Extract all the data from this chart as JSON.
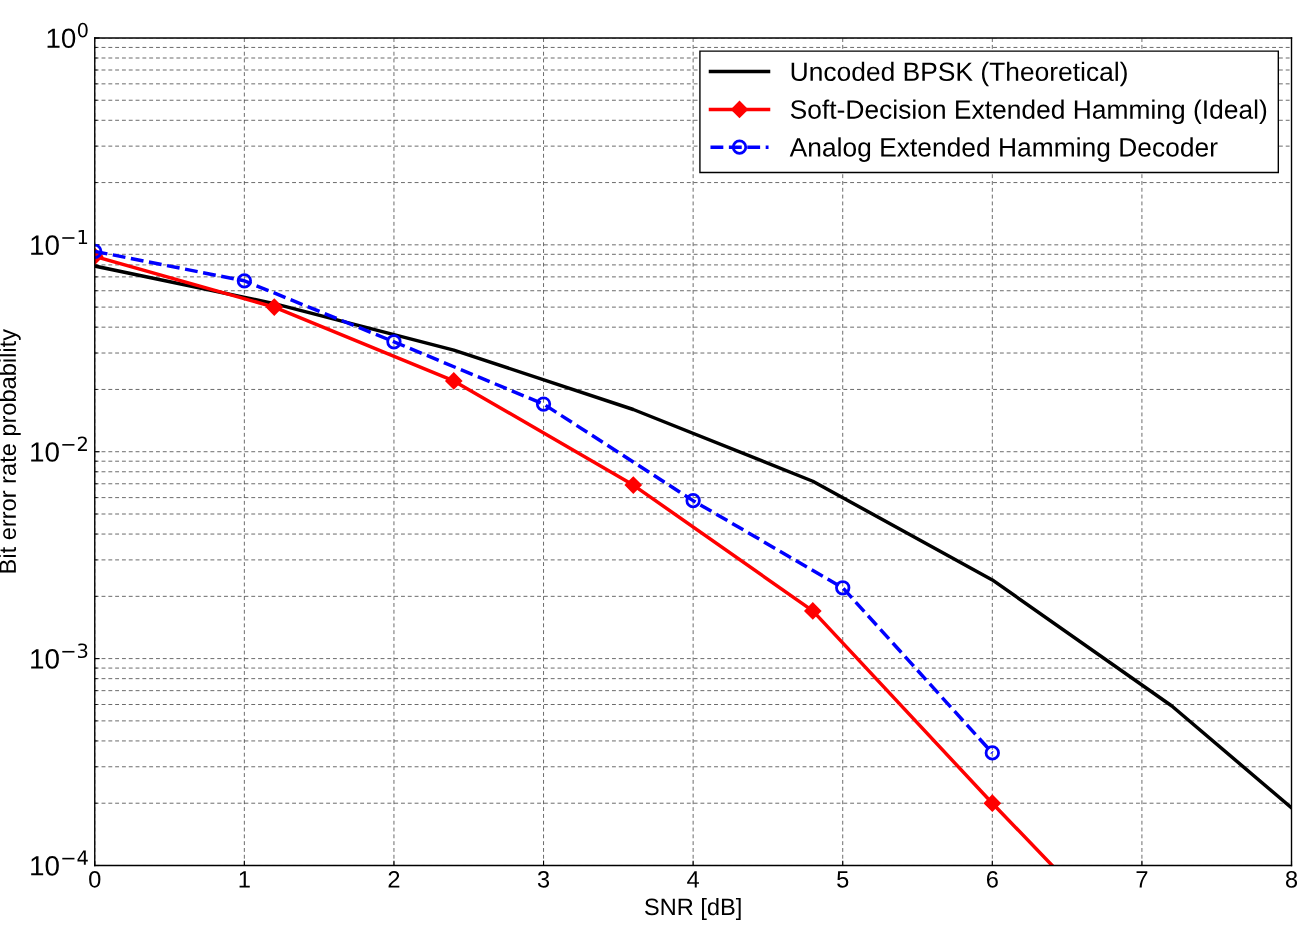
{
  "chart_data": {
    "type": "line",
    "xlabel": "SNR [dB]",
    "ylabel": "Bit error rate probability",
    "log": "y",
    "xlim": [
      0,
      8
    ],
    "xticks": [
      0,
      1,
      2,
      3,
      4,
      5,
      6,
      7,
      8
    ],
    "ylim": [
      0.0001,
      1
    ],
    "yticks": [
      {
        "value": 0.0001,
        "label": "10$^{−4}$"
      },
      {
        "value": 0.001,
        "label": "10$^{−3}$"
      },
      {
        "value": 0.01,
        "label": "10$^{−2}$"
      },
      {
        "value": 0.1,
        "label": "10$^{−1}$"
      },
      {
        "value": 1,
        "label": "10$^{0}$"
      }
    ],
    "grid": true,
    "legend": "top right",
    "series": [
      {
        "name": "Uncoded BPSK (Theoretical)",
        "color": "#000000",
        "marker": "none",
        "line_style": "solid",
        "x": [
          0,
          1.2,
          2.4,
          3.6,
          4.8,
          6.0,
          7.2,
          8.0
        ],
        "values": [
          0.079,
          0.052,
          0.031,
          0.016,
          0.0072,
          0.0024,
          0.00059,
          0.00019
        ]
      },
      {
        "name": "Soft-Decision Extended Hamming (Ideal)",
        "color": "#ff0000",
        "marker": "diamond",
        "line_style": "solid",
        "x": [
          0,
          1.2,
          2.4,
          3.6,
          4.8,
          6.0,
          6.4
        ],
        "values": [
          0.088,
          0.05,
          0.022,
          0.0069,
          0.0017,
          0.0002,
          0.0001
        ]
      },
      {
        "name": "Analog Extended Hamming Decoder",
        "color": "#0000ff",
        "marker": "circle",
        "line_style": "dashed",
        "x": [
          0,
          1,
          2,
          3,
          4,
          5,
          6
        ],
        "values": [
          0.093,
          0.067,
          0.034,
          0.017,
          0.0058,
          0.0022,
          0.00035
        ]
      }
    ]
  }
}
